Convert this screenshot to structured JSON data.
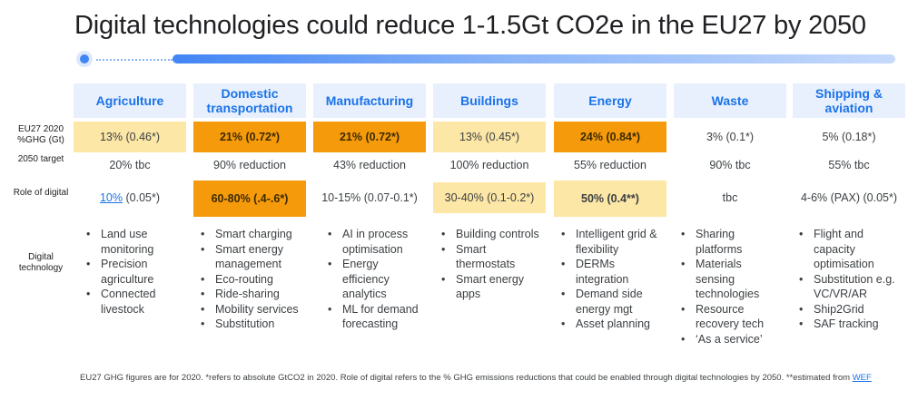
{
  "title": "Digital technologies could reduce 1-1.5Gt CO2e in the EU27 by 2050",
  "row_labels": {
    "ghg": "EU27 2020 %GHG (Gt)",
    "target": "2050 target",
    "role": "Role of digital",
    "tech": "Digital technology"
  },
  "columns": [
    {
      "header": "Agriculture",
      "ghg": "13% (0.46*)",
      "target": "20% tbc",
      "role_link": "10%",
      "role_rest": " (0.05*)",
      "tech": [
        "Land use monitoring",
        "Precision agriculture",
        "Connected livestock"
      ]
    },
    {
      "header": "Domestic transportation",
      "ghg": "21% (0.72*)",
      "target": "90% reduction",
      "role": "60-80% (.4-.6*)",
      "tech": [
        "Smart charging",
        "Smart energy management",
        "Eco-routing",
        "Ride-sharing",
        "Mobility services",
        "Substitution"
      ]
    },
    {
      "header": "Manufacturing",
      "ghg": "21% (0.72*)",
      "target": "43% reduction",
      "role": "10-15% (0.07-0.1*)",
      "tech": [
        "AI in process optimisation",
        "Energy efficiency analytics",
        "ML for demand forecasting"
      ]
    },
    {
      "header": "Buildings",
      "ghg": "13% (0.45*)",
      "target": "100% reduction",
      "role": "30-40% (0.1-0.2*)",
      "tech": [
        "Building controls",
        "Smart thermostats",
        "Smart energy apps"
      ]
    },
    {
      "header": "Energy",
      "ghg": "24% (0.84*)",
      "target": "55% reduction",
      "role": "50% (0.4**)",
      "tech": [
        "Intelligent grid & flexibility",
        "DERMs integration",
        "Demand side energy mgt",
        "Asset planning"
      ]
    },
    {
      "header": "Waste",
      "ghg": "3% (0.1*)",
      "target": "90% tbc",
      "role": "tbc",
      "tech": [
        "Sharing platforms",
        "Materials sensing technologies",
        "Resource recovery tech",
        "‘As a service’"
      ]
    },
    {
      "header": "Shipping & aviation",
      "ghg": "5% (0.18*)",
      "target": "55% tbc",
      "role": "4-6% (PAX) (0.05*)",
      "tech": [
        "Flight and capacity optimisation",
        "Substitution e.g. VC/VR/AR",
        "Ship2Grid",
        "SAF tracking"
      ]
    }
  ],
  "footnote": {
    "text": "EU27 GHG figures are for 2020. *refers to absolute GtCO2 in 2020. Role of digital refers to the % GHG emissions reductions that could be enabled through digital technologies by 2050. **estimated from ",
    "link": "WEF"
  },
  "colors": {
    "accent": "#1a73e8",
    "header_bg": "#e8f0fe",
    "light": "#fde7a6",
    "dark": "#f59a0b"
  }
}
